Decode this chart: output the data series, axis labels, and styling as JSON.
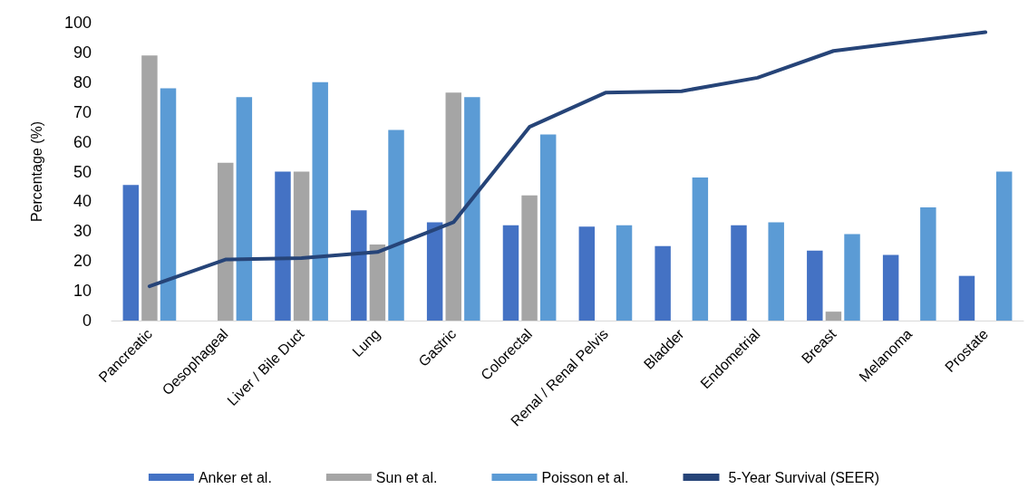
{
  "chart_data": {
    "type": "bar",
    "ylabel": "Percentage (%)",
    "categories": [
      "Pancreatic",
      "Oesophageal",
      "Liver / Bile Duct",
      "Lung",
      "Gastric",
      "Colorectal",
      "Renal / Renal Pelvis",
      "Bladder",
      "Endometrial",
      "Breast",
      "Melanoma",
      "Prostate"
    ],
    "series": [
      {
        "name": "Anker et al.",
        "color": "#4472c4",
        "values": [
          45.5,
          null,
          50,
          37,
          33,
          32,
          31.5,
          25,
          32,
          23.5,
          22,
          15
        ]
      },
      {
        "name": "Sun et al.",
        "color": "#a5a5a5",
        "values": [
          89,
          53,
          50,
          25.5,
          76.5,
          42,
          null,
          null,
          null,
          3,
          null,
          null
        ]
      },
      {
        "name": "Poisson et al.",
        "color": "#5b9bd5",
        "values": [
          78,
          75,
          80,
          64,
          75,
          62.5,
          32,
          48,
          33,
          29,
          38,
          50
        ]
      },
      {
        "name": "5-Year Survival (SEER)",
        "type": "line",
        "color": "#264478",
        "values": [
          11.5,
          20.5,
          21,
          23,
          33,
          65,
          76.5,
          77,
          81.5,
          90.5,
          93.7,
          96.8
        ]
      }
    ],
    "ylim": [
      0,
      100
    ],
    "yticks": [
      0,
      10,
      20,
      30,
      40,
      50,
      60,
      70,
      80,
      90,
      100
    ],
    "grid": false,
    "legend": "bottom",
    "marker": "none",
    "line_style": "solid"
  }
}
